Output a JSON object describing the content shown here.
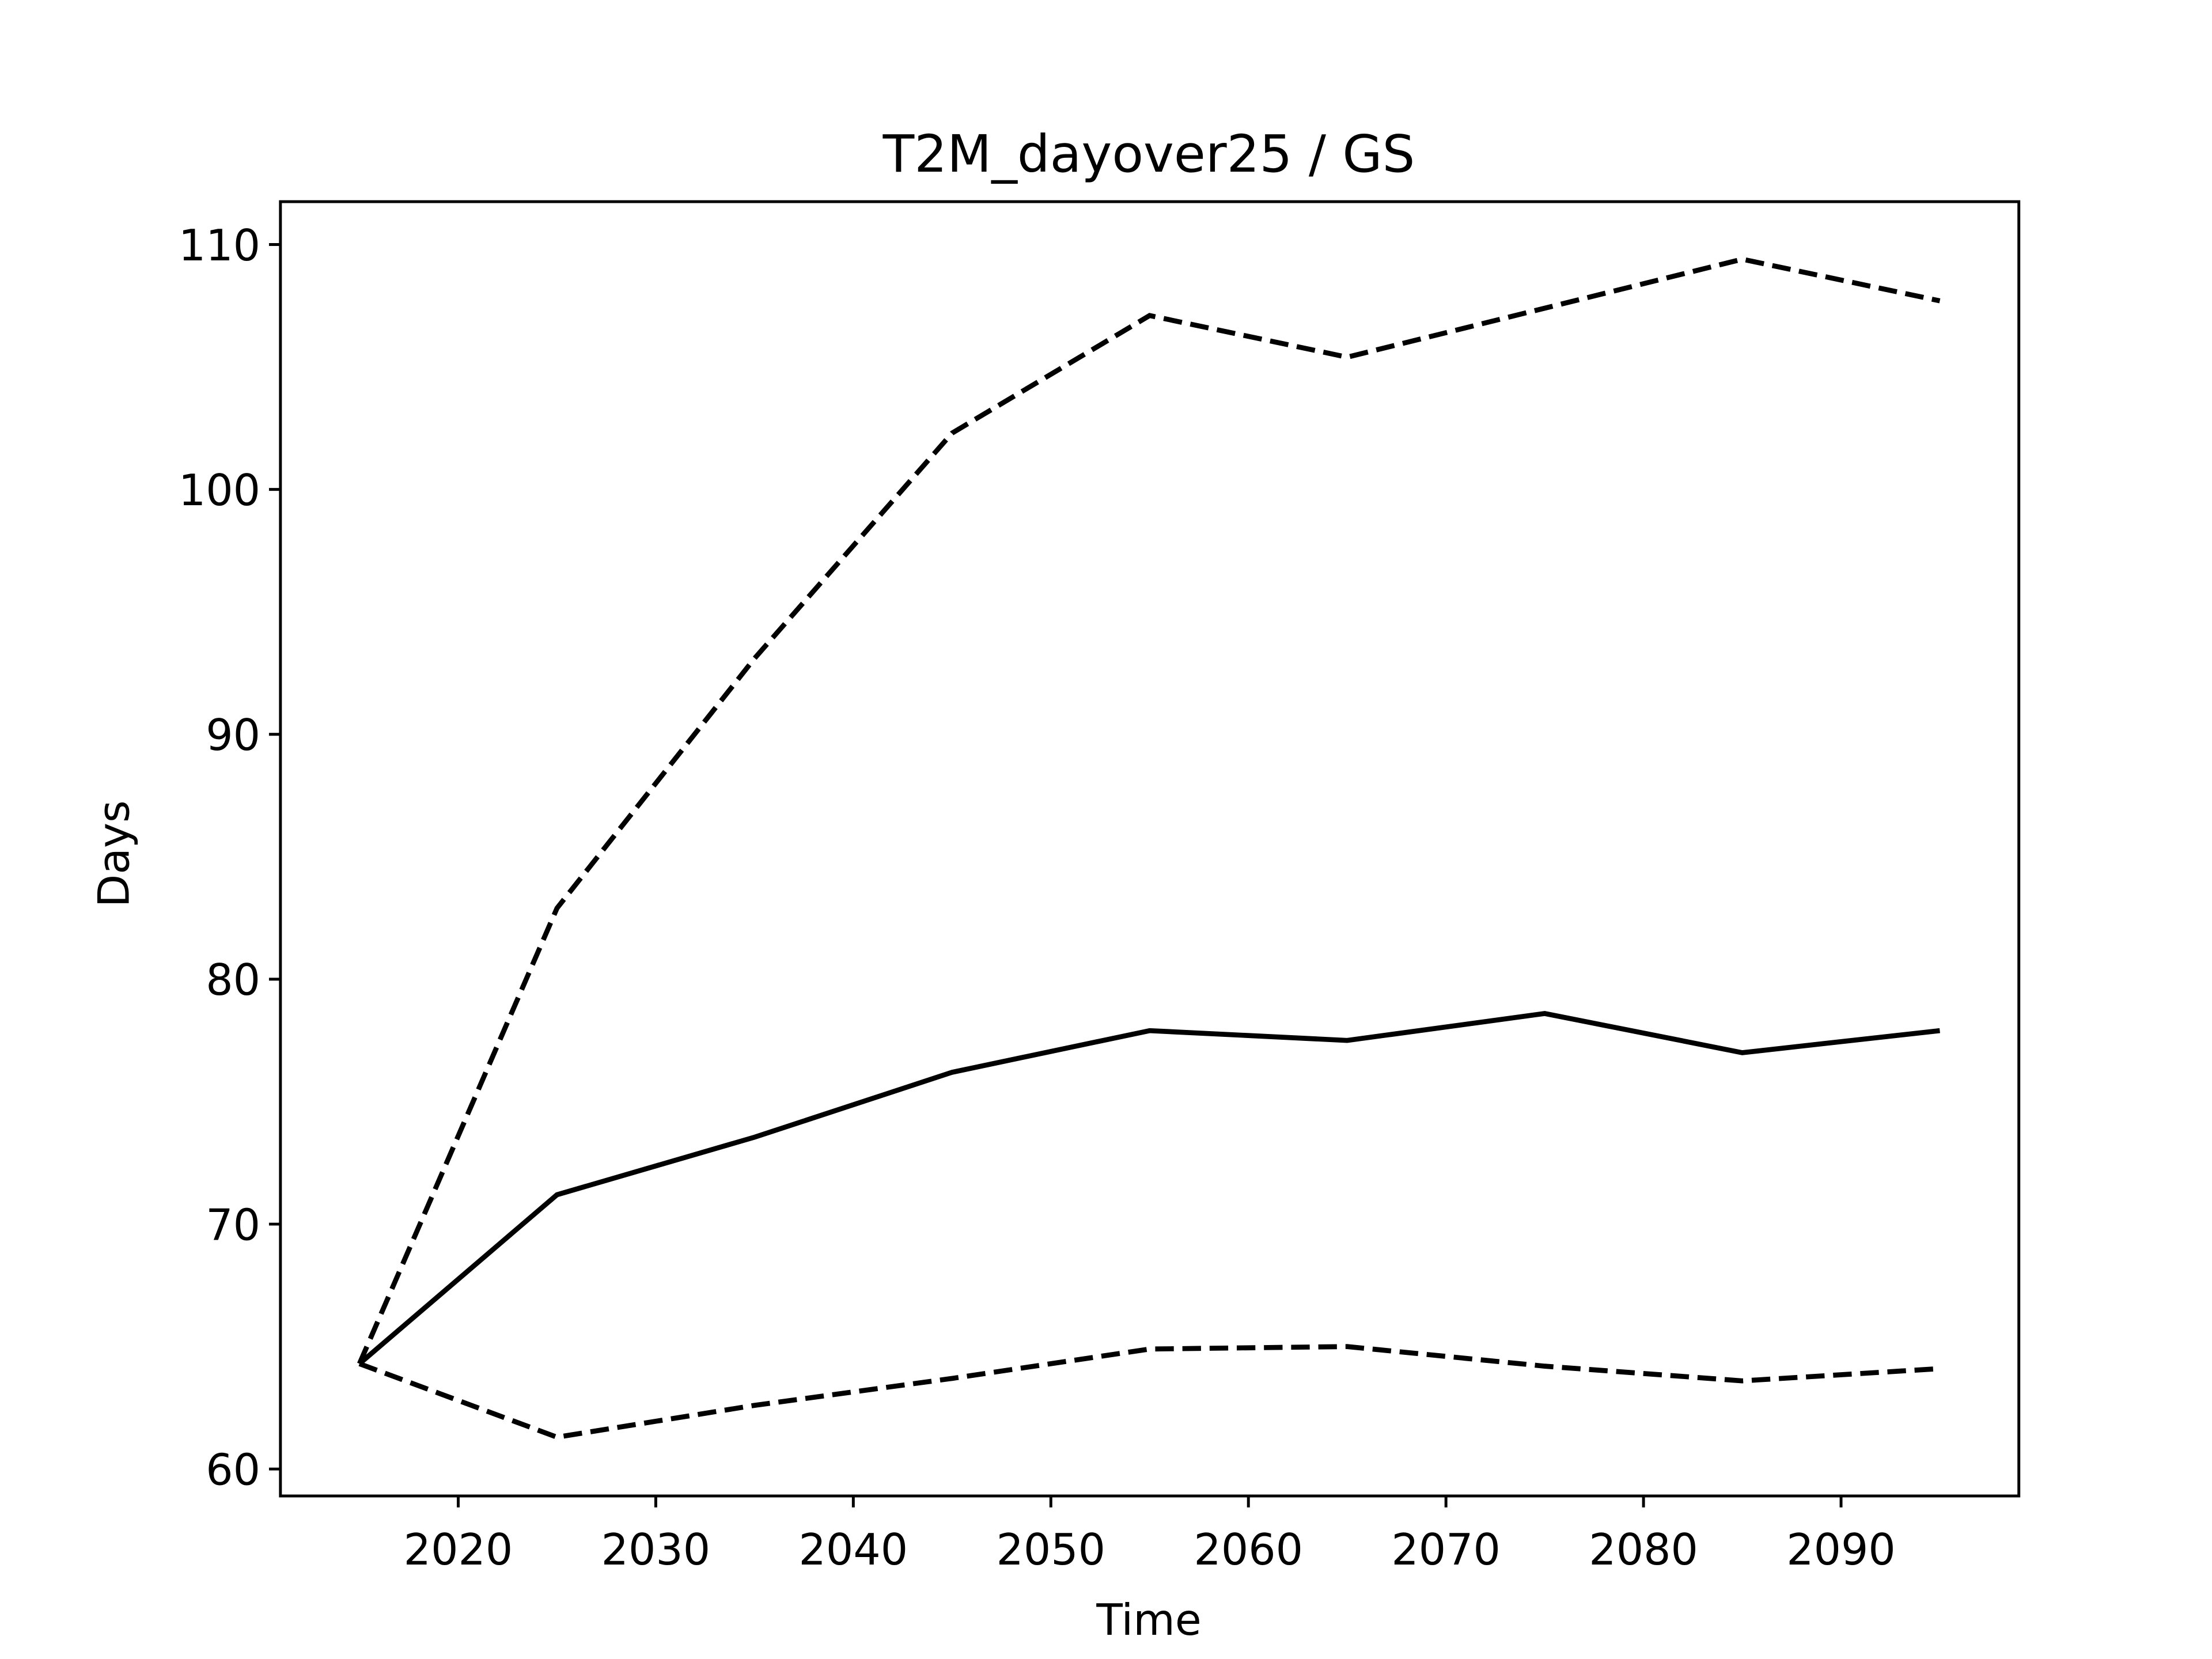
{
  "chart_data": {
    "type": "line",
    "title": "T2M_dayover25 / GS",
    "x_label": "Time",
    "y_label": "Days",
    "x": [
      2015,
      2025,
      2035,
      2045,
      2055,
      2065,
      2075,
      2085,
      2095
    ],
    "series": [
      {
        "color": "#000000",
        "linestyle": "solid",
        "values": [
          64.3,
          71.2,
          73.55,
          76.2,
          77.9,
          77.5,
          78.6,
          77.0,
          77.9
        ]
      },
      {
        "color": "#000000",
        "linestyle": "dashed",
        "values": [
          64.3,
          82.9,
          93.1,
          102.3,
          107.1,
          105.4,
          107.4,
          109.4,
          107.7
        ]
      },
      {
        "color": "#000000",
        "linestyle": "dashed",
        "values": [
          64.3,
          61.3,
          62.6,
          63.7,
          64.9,
          65.0,
          64.2,
          63.6,
          64.1
        ]
      }
    ],
    "xlim": [
      2011,
      2099
    ],
    "xticks": [
      2020,
      2030,
      2040,
      2050,
      2060,
      2070,
      2080,
      2090
    ],
    "ylim": [
      58.9,
      111.75
    ],
    "yticks": [
      60,
      70,
      80,
      90,
      100,
      110
    ],
    "grid": false
  }
}
